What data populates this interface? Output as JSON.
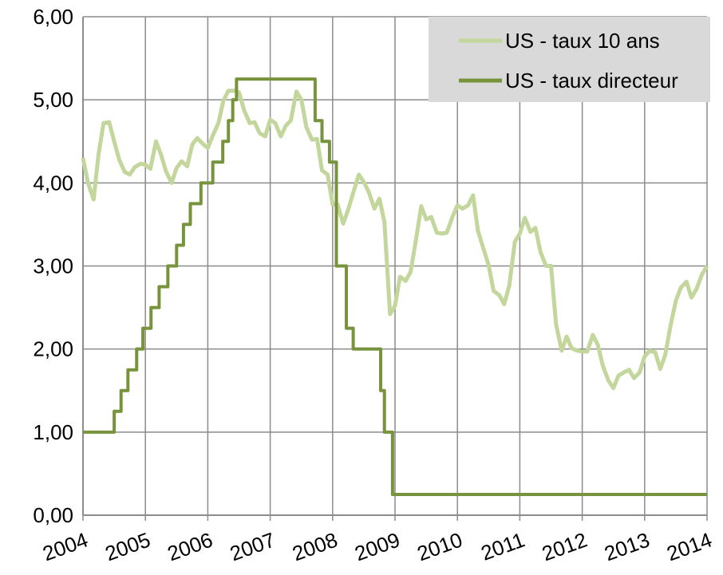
{
  "chart_data": {
    "type": "line",
    "xlim": [
      2004,
      2014
    ],
    "xticks": [
      2004,
      2005,
      2006,
      2007,
      2008,
      2009,
      2010,
      2011,
      2012,
      2013,
      2014
    ],
    "ylim": [
      0,
      6
    ],
    "yticks": [
      {
        "value": 0,
        "label": "0,00"
      },
      {
        "value": 1,
        "label": "1,00"
      },
      {
        "value": 2,
        "label": "2,00"
      },
      {
        "value": 3,
        "label": "3,00"
      },
      {
        "value": 4,
        "label": "4,00"
      },
      {
        "value": 5,
        "label": "5,00"
      },
      {
        "value": 6,
        "label": "6,00"
      }
    ],
    "grid": true,
    "legend": "upper right",
    "series": [
      {
        "name": "US - taux 10 ans",
        "color": "#c3d69b",
        "x": [
          2004,
          2004.08,
          2004.17,
          2004.25,
          2004.33,
          2004.42,
          2004.5,
          2004.58,
          2004.67,
          2004.75,
          2004.83,
          2004.92,
          2005,
          2005.08,
          2005.17,
          2005.25,
          2005.33,
          2005.42,
          2005.5,
          2005.58,
          2005.67,
          2005.75,
          2005.83,
          2005.92,
          2006,
          2006.08,
          2006.17,
          2006.25,
          2006.33,
          2006.42,
          2006.5,
          2006.58,
          2006.67,
          2006.75,
          2006.83,
          2006.92,
          2007,
          2007.08,
          2007.17,
          2007.25,
          2007.33,
          2007.42,
          2007.5,
          2007.58,
          2007.67,
          2007.75,
          2007.83,
          2007.92,
          2008,
          2008.08,
          2008.17,
          2008.25,
          2008.33,
          2008.42,
          2008.5,
          2008.58,
          2008.67,
          2008.75,
          2008.83,
          2008.92,
          2009,
          2009.08,
          2009.17,
          2009.25,
          2009.33,
          2009.42,
          2009.5,
          2009.58,
          2009.67,
          2009.75,
          2009.83,
          2009.92,
          2010,
          2010.08,
          2010.17,
          2010.25,
          2010.33,
          2010.42,
          2010.5,
          2010.58,
          2010.67,
          2010.75,
          2010.83,
          2010.92,
          2011,
          2011.08,
          2011.17,
          2011.25,
          2011.33,
          2011.42,
          2011.5,
          2011.58,
          2011.67,
          2011.75,
          2011.83,
          2011.92,
          2012,
          2012.08,
          2012.17,
          2012.25,
          2012.33,
          2012.42,
          2012.5,
          2012.58,
          2012.67,
          2012.75,
          2012.83,
          2012.92,
          2013,
          2013.08,
          2013.17,
          2013.25,
          2013.33,
          2013.42,
          2013.5,
          2013.58,
          2013.67,
          2013.75,
          2013.83,
          2013.92,
          2014
        ],
        "values": [
          4.3,
          4.0,
          3.8,
          4.35,
          4.72,
          4.73,
          4.5,
          4.28,
          4.13,
          4.1,
          4.19,
          4.23,
          4.22,
          4.17,
          4.5,
          4.34,
          4.14,
          4.0,
          4.18,
          4.26,
          4.2,
          4.46,
          4.54,
          4.47,
          4.42,
          4.57,
          4.72,
          4.99,
          5.11,
          5.11,
          5.09,
          4.88,
          4.72,
          4.73,
          4.6,
          4.56,
          4.76,
          4.72,
          4.56,
          4.69,
          4.75,
          5.1,
          5.0,
          4.67,
          4.52,
          4.53,
          4.15,
          4.1,
          3.74,
          3.74,
          3.51,
          3.68,
          3.88,
          4.1,
          4.01,
          3.89,
          3.69,
          3.81,
          3.53,
          2.42,
          2.52,
          2.87,
          2.82,
          2.93,
          3.29,
          3.72,
          3.56,
          3.59,
          3.4,
          3.39,
          3.4,
          3.59,
          3.73,
          3.69,
          3.73,
          3.85,
          3.42,
          3.2,
          3.01,
          2.7,
          2.65,
          2.54,
          2.76,
          3.29,
          3.39,
          3.58,
          3.41,
          3.46,
          3.17,
          3.0,
          3.0,
          2.3,
          1.98,
          2.15,
          2.01,
          1.98,
          1.97,
          1.97,
          2.17,
          2.05,
          1.8,
          1.62,
          1.53,
          1.68,
          1.72,
          1.75,
          1.65,
          1.72,
          1.91,
          1.98,
          1.96,
          1.76,
          1.93,
          2.3,
          2.58,
          2.74,
          2.81,
          2.62,
          2.72,
          2.9,
          3.0
        ]
      },
      {
        "name": "US - taux directeur",
        "color": "#77933c",
        "drawstyle": "steps-post",
        "x": [
          2004,
          2004.5,
          2004.61,
          2004.72,
          2004.86,
          2004.96,
          2005.09,
          2005.22,
          2005.36,
          2005.5,
          2005.61,
          2005.72,
          2005.89,
          2006.08,
          2006.24,
          2006.33,
          2006.4,
          2006.46,
          2007.72,
          2007.83,
          2007.95,
          2008.06,
          2008.22,
          2008.33,
          2008.77,
          2008.83,
          2008.96,
          2014
        ],
        "values": [
          1.0,
          1.25,
          1.5,
          1.75,
          2.0,
          2.25,
          2.5,
          2.75,
          3.0,
          3.25,
          3.5,
          3.75,
          4.0,
          4.25,
          4.5,
          4.75,
          5.0,
          5.25,
          4.75,
          4.5,
          4.25,
          3.0,
          2.25,
          2.0,
          1.5,
          1.0,
          0.25,
          0.25
        ]
      }
    ]
  }
}
